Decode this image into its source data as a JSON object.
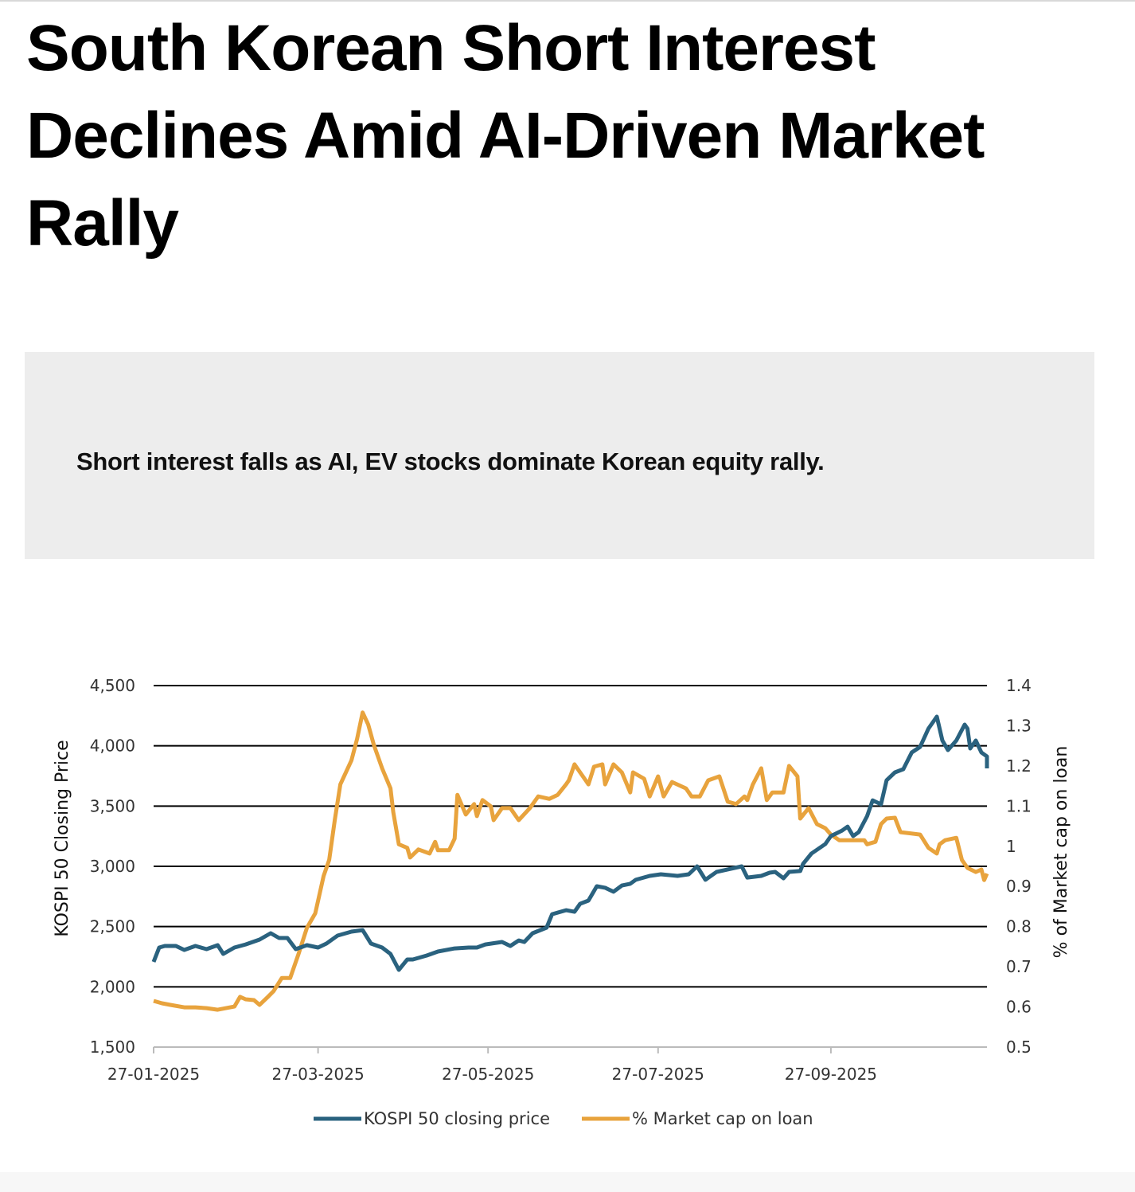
{
  "article": {
    "title": "South Korean Short Interest Declines Amid AI-Driven Market Rally",
    "summary": "Short interest falls as AI, EV stocks dominate Korean equity rally."
  },
  "chart_data": {
    "type": "line",
    "title": "",
    "x_start": "27-01-2025",
    "x_unit": "days",
    "x_ticks": [
      {
        "day": 0,
        "label": "27-01-2025"
      },
      {
        "day": 59,
        "label": "27-03-2025"
      },
      {
        "day": 120,
        "label": "27-05-2025"
      },
      {
        "day": 181,
        "label": "27-07-2025"
      },
      {
        "day": 243,
        "label": "27-09-2025"
      }
    ],
    "x_range": [
      0,
      299
    ],
    "ylabel": "KOSPI 50 Closing Price",
    "ylim": [
      1500,
      4500
    ],
    "y_ticks": [
      "1,500",
      "2,000",
      "2,500",
      "3,000",
      "3,500",
      "4,000",
      "4,500"
    ],
    "y2label": "% of Market cap on loan",
    "y2lim": [
      0.5,
      1.4
    ],
    "y2_ticks": [
      "0.5",
      "0.6",
      "0.7",
      "0.8",
      "0.9",
      "1",
      "1.1",
      "1.2",
      "1.3",
      "1.4"
    ],
    "grid": true,
    "legend_position": "bottom",
    "series": [
      {
        "name": "KOSPI 50 closing price",
        "axis": "left",
        "color": "#2a627f",
        "points": [
          [
            0,
            2207
          ],
          [
            2,
            2326
          ],
          [
            4,
            2339
          ],
          [
            8,
            2339
          ],
          [
            11,
            2306
          ],
          [
            15,
            2339
          ],
          [
            19,
            2313
          ],
          [
            23,
            2346
          ],
          [
            25,
            2273
          ],
          [
            29,
            2326
          ],
          [
            33,
            2352
          ],
          [
            38,
            2392
          ],
          [
            42,
            2445
          ],
          [
            45,
            2405
          ],
          [
            48,
            2405
          ],
          [
            51,
            2313
          ],
          [
            55,
            2346
          ],
          [
            59,
            2326
          ],
          [
            62,
            2359
          ],
          [
            66,
            2425
          ],
          [
            71,
            2458
          ],
          [
            75,
            2471
          ],
          [
            78,
            2359
          ],
          [
            82,
            2326
          ],
          [
            85,
            2273
          ],
          [
            88,
            2141
          ],
          [
            91,
            2227
          ],
          [
            93,
            2227
          ],
          [
            98,
            2260
          ],
          [
            102,
            2293
          ],
          [
            108,
            2319
          ],
          [
            113,
            2326
          ],
          [
            116,
            2326
          ],
          [
            119,
            2352
          ],
          [
            125,
            2372
          ],
          [
            128,
            2339
          ],
          [
            131,
            2385
          ],
          [
            133,
            2372
          ],
          [
            136,
            2445
          ],
          [
            141,
            2491
          ],
          [
            143,
            2603
          ],
          [
            148,
            2636
          ],
          [
            151,
            2623
          ],
          [
            153,
            2689
          ],
          [
            156,
            2716
          ],
          [
            159,
            2835
          ],
          [
            162,
            2822
          ],
          [
            165,
            2789
          ],
          [
            168,
            2841
          ],
          [
            171,
            2855
          ],
          [
            173,
            2888
          ],
          [
            178,
            2921
          ],
          [
            182,
            2934
          ],
          [
            188,
            2921
          ],
          [
            192,
            2934
          ],
          [
            195,
            3000
          ],
          [
            198,
            2888
          ],
          [
            202,
            2954
          ],
          [
            206,
            2974
          ],
          [
            211,
            3000
          ],
          [
            213,
            2907
          ],
          [
            218,
            2921
          ],
          [
            221,
            2947
          ],
          [
            223,
            2954
          ],
          [
            226,
            2901
          ],
          [
            228,
            2954
          ],
          [
            232,
            2961
          ],
          [
            233,
            3020
          ],
          [
            236,
            3106
          ],
          [
            241,
            3185
          ],
          [
            243,
            3251
          ],
          [
            247,
            3297
          ],
          [
            249,
            3330
          ],
          [
            251,
            3251
          ],
          [
            253,
            3284
          ],
          [
            256,
            3416
          ],
          [
            258,
            3548
          ],
          [
            261,
            3515
          ],
          [
            263,
            3714
          ],
          [
            266,
            3780
          ],
          [
            269,
            3806
          ],
          [
            272,
            3945
          ],
          [
            275,
            3991
          ],
          [
            278,
            4143
          ],
          [
            281,
            4242
          ],
          [
            283,
            4044
          ],
          [
            285,
            3965
          ],
          [
            288,
            4044
          ],
          [
            291,
            4176
          ],
          [
            292,
            4143
          ],
          [
            293,
            3978
          ],
          [
            295,
            4044
          ],
          [
            297,
            3945
          ],
          [
            299,
            3912
          ],
          [
            299,
            3813
          ]
        ]
      },
      {
        "name": "% Market cap on loan",
        "axis": "right",
        "color": "#e8a33d",
        "points": [
          [
            0,
            0.615
          ],
          [
            3,
            0.609
          ],
          [
            6,
            0.605
          ],
          [
            11,
            0.599
          ],
          [
            15,
            0.599
          ],
          [
            19,
            0.597
          ],
          [
            23,
            0.593
          ],
          [
            26,
            0.597
          ],
          [
            29,
            0.601
          ],
          [
            31,
            0.625
          ],
          [
            33,
            0.619
          ],
          [
            36,
            0.617
          ],
          [
            38,
            0.605
          ],
          [
            41,
            0.625
          ],
          [
            43,
            0.639
          ],
          [
            46,
            0.672
          ],
          [
            49,
            0.672
          ],
          [
            52,
            0.732
          ],
          [
            55,
            0.797
          ],
          [
            58,
            0.833
          ],
          [
            61,
            0.926
          ],
          [
            63,
            0.966
          ],
          [
            65,
            1.065
          ],
          [
            67,
            1.154
          ],
          [
            71,
            1.214
          ],
          [
            73,
            1.267
          ],
          [
            75,
            1.333
          ],
          [
            77,
            1.303
          ],
          [
            79,
            1.253
          ],
          [
            82,
            1.194
          ],
          [
            85,
            1.144
          ],
          [
            86,
            1.085
          ],
          [
            88,
            1.005
          ],
          [
            91,
            0.996
          ],
          [
            92,
            0.972
          ],
          [
            95,
            0.992
          ],
          [
            99,
            0.982
          ],
          [
            101,
            1.011
          ],
          [
            102,
            0.99
          ],
          [
            106,
            0.99
          ],
          [
            108,
            1.019
          ],
          [
            109,
            1.128
          ],
          [
            112,
            1.079
          ],
          [
            115,
            1.105
          ],
          [
            116,
            1.075
          ],
          [
            118,
            1.115
          ],
          [
            121,
            1.099
          ],
          [
            122,
            1.065
          ],
          [
            125,
            1.095
          ],
          [
            128,
            1.095
          ],
          [
            131,
            1.065
          ],
          [
            135,
            1.095
          ],
          [
            138,
            1.124
          ],
          [
            142,
            1.118
          ],
          [
            145,
            1.128
          ],
          [
            148,
            1.154
          ],
          [
            149,
            1.164
          ],
          [
            151,
            1.204
          ],
          [
            155,
            1.164
          ],
          [
            156,
            1.154
          ],
          [
            158,
            1.198
          ],
          [
            161,
            1.204
          ],
          [
            162,
            1.154
          ],
          [
            165,
            1.204
          ],
          [
            168,
            1.184
          ],
          [
            171,
            1.134
          ],
          [
            172,
            1.184
          ],
          [
            176,
            1.168
          ],
          [
            178,
            1.124
          ],
          [
            181,
            1.174
          ],
          [
            183,
            1.124
          ],
          [
            186,
            1.16
          ],
          [
            191,
            1.144
          ],
          [
            193,
            1.124
          ],
          [
            196,
            1.124
          ],
          [
            199,
            1.164
          ],
          [
            203,
            1.174
          ],
          [
            206,
            1.111
          ],
          [
            209,
            1.105
          ],
          [
            212,
            1.124
          ],
          [
            213,
            1.115
          ],
          [
            215,
            1.154
          ],
          [
            218,
            1.194
          ],
          [
            220,
            1.115
          ],
          [
            222,
            1.134
          ],
          [
            226,
            1.134
          ],
          [
            228,
            1.2
          ],
          [
            231,
            1.174
          ],
          [
            232,
            1.069
          ],
          [
            235,
            1.095
          ],
          [
            238,
            1.055
          ],
          [
            241,
            1.045
          ],
          [
            243,
            1.029
          ],
          [
            246,
            1.015
          ],
          [
            249,
            1.015
          ],
          [
            255,
            1.015
          ],
          [
            256,
            1.005
          ],
          [
            259,
            1.011
          ],
          [
            261,
            1.055
          ],
          [
            263,
            1.069
          ],
          [
            266,
            1.071
          ],
          [
            268,
            1.035
          ],
          [
            275,
            1.029
          ],
          [
            278,
            0.996
          ],
          [
            281,
            0.982
          ],
          [
            282,
            1.005
          ],
          [
            284,
            1.015
          ],
          [
            288,
            1.021
          ],
          [
            290,
            0.966
          ],
          [
            292,
            0.946
          ],
          [
            295,
            0.936
          ],
          [
            297,
            0.942
          ],
          [
            298,
            0.916
          ],
          [
            299,
            0.932
          ]
        ]
      }
    ]
  }
}
